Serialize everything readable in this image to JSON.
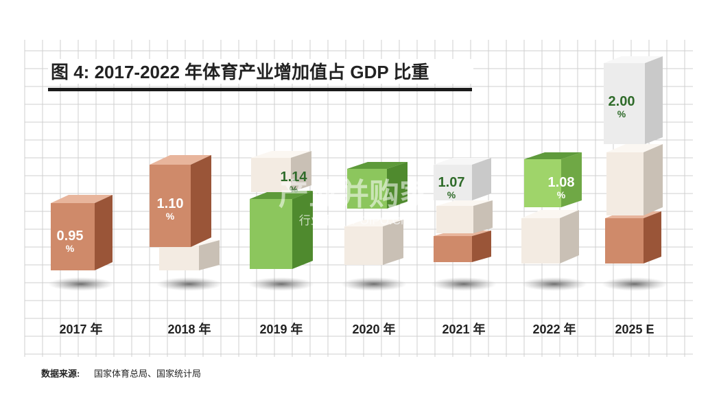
{
  "chart_data": {
    "type": "bar",
    "title": "图 4: 2017-2022 年体育产业增加值占 GDP 比重",
    "categories": [
      "2017 年",
      "2018 年",
      "2019 年",
      "2020 年",
      "2021 年",
      "2022 年",
      "2025 E"
    ],
    "values": [
      0.95,
      1.1,
      1.14,
      null,
      1.07,
      1.08,
      2.0
    ],
    "value_labels": [
      "0.95",
      "1.10",
      "1.14",
      "",
      "1.07",
      "1.08",
      "2.00"
    ],
    "unit_label": "%",
    "source_label": "数据来源:",
    "source_text": "国家体育总局、国家统计局",
    "watermark_main": "产业并购家",
    "watermark_sub": "行业报告 IPOIPO.CN"
  }
}
